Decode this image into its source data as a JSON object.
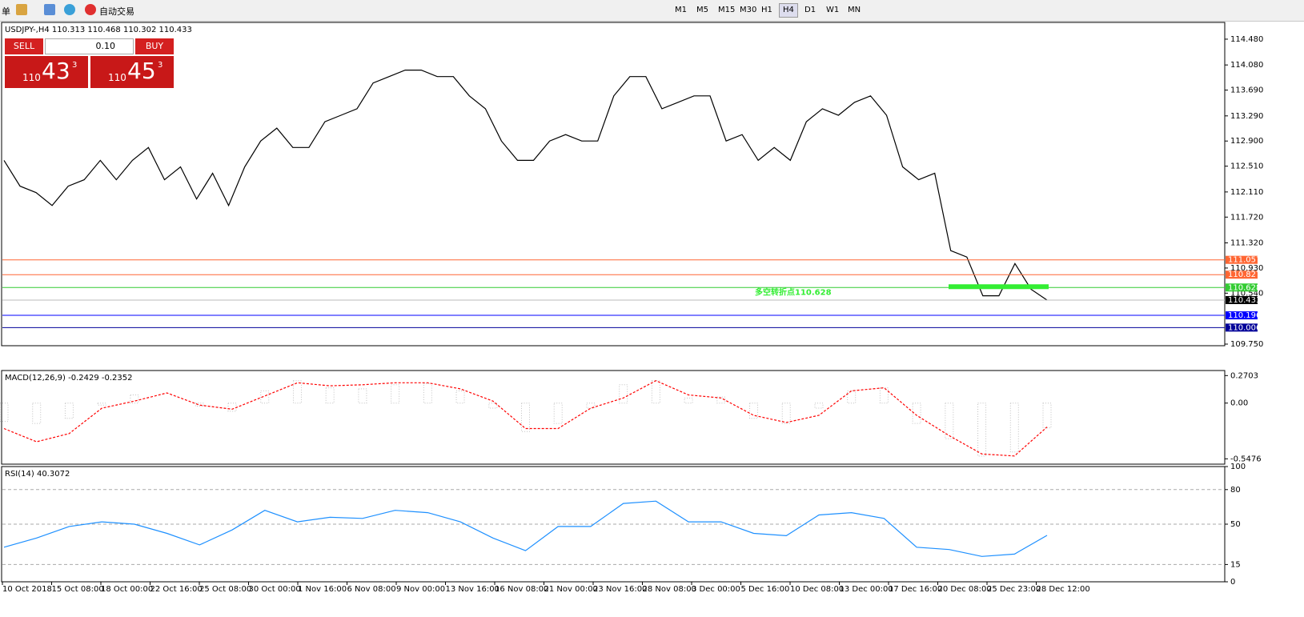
{
  "toolbar": {
    "menu_fragment": "单",
    "auto_trade": "自动交易",
    "timeframes": [
      "M1",
      "M5",
      "M15",
      "M30",
      "H1",
      "H4",
      "D1",
      "W1",
      "MN"
    ],
    "active": "H4"
  },
  "trade_panel": {
    "sell": "SELL",
    "buy": "BUY",
    "lot": "0.10",
    "sell_big": "110",
    "sell_main": "43",
    "sell_pip": "3",
    "buy_big": "110",
    "buy_main": "45",
    "buy_pip": "3"
  },
  "chart_data": [
    {
      "type": "line",
      "title": "USDJPY-,H4 110.313 110.468 110.302 110.433",
      "color": "#000000",
      "values": [
        112.6,
        112.2,
        112.1,
        111.9,
        112.2,
        112.3,
        112.6,
        112.3,
        112.6,
        112.8,
        112.3,
        112.5,
        112.0,
        112.4,
        111.9,
        112.5,
        112.9,
        113.1,
        112.8,
        112.8,
        113.2,
        113.3,
        113.4,
        113.8,
        113.9,
        114.0,
        114.0,
        113.9,
        113.9,
        113.6,
        113.4,
        112.9,
        112.6,
        112.6,
        112.9,
        113.0,
        112.9,
        112.9,
        113.6,
        113.9,
        113.9,
        113.4,
        113.5,
        113.6,
        113.6,
        112.9,
        113.0,
        112.6,
        112.8,
        112.6,
        113.2,
        113.4,
        113.3,
        113.5,
        113.6,
        113.3,
        112.5,
        112.3,
        112.4,
        111.2,
        111.1,
        110.5,
        110.5,
        111.0,
        110.6,
        110.433
      ],
      "ylim": [
        109.725,
        114.74
      ],
      "yticks": [
        {
          "value": 114.48,
          "label": "114.480"
        },
        {
          "value": 114.08,
          "label": "114.080"
        },
        {
          "value": 113.69,
          "label": "113.690"
        },
        {
          "value": 113.29,
          "label": "113.290"
        },
        {
          "value": 112.9,
          "label": "112.900"
        },
        {
          "value": 112.51,
          "label": "112.510"
        },
        {
          "value": 112.11,
          "label": "112.110"
        },
        {
          "value": 111.72,
          "label": "111.720"
        },
        {
          "value": 111.32,
          "label": "111.320"
        },
        {
          "value": 110.93,
          "label": "110.930"
        },
        {
          "value": 110.54,
          "label": "110.540"
        },
        {
          "value": 109.75,
          "label": "109.750"
        }
      ],
      "levels": [
        {
          "value": 111.057,
          "color": "#ff6633"
        },
        {
          "value": 110.827,
          "color": "#ff6633"
        },
        {
          "value": 110.628,
          "color": "#33cc33"
        },
        {
          "value": 110.196,
          "color": "#0000ff"
        },
        {
          "value": 110.006,
          "color": "#000099"
        }
      ],
      "last": 110.433,
      "annotation": {
        "text": "多空转折点110.628",
        "value": 110.628,
        "color": "#33ee33"
      },
      "date_labels": [
        "10 Oct 2018",
        "15 Oct 08:00",
        "18 Oct 00:00",
        "22 Oct 16:00",
        "25 Oct 08:00",
        "30 Oct 00:00",
        "1 Nov 16:00",
        "6 Nov 08:00",
        "9 Nov 00:00",
        "13 Nov 16:00",
        "16 Nov 08:00",
        "21 Nov 00:00",
        "23 Nov 16:00",
        "28 Nov 08:00",
        "3 Dec 00:00",
        "5 Dec 16:00",
        "10 Dec 08:00",
        "13 Dec 00:00",
        "17 Dec 16:00",
        "20 Dec 08:00",
        "25 Dec 23:00",
        "28 Dec 12:00"
      ]
    },
    {
      "type": "macd",
      "title": "MACD(12,26,9) -0.2429 -0.2352",
      "series": [
        {
          "name": "MACD",
          "color": "#c0c0c0",
          "values": [
            -0.18,
            -0.2,
            -0.15,
            -0.02,
            0.08,
            0.0,
            -0.03,
            -0.08,
            0.12,
            0.22,
            0.15,
            0.14,
            0.18,
            0.19,
            0.12,
            -0.05,
            -0.28,
            -0.2,
            -0.05,
            0.18,
            0.22,
            0.05,
            0.06,
            -0.15,
            -0.2,
            -0.05,
            0.12,
            0.15,
            -0.2,
            -0.35,
            -0.52,
            -0.48,
            -0.2429
          ]
        },
        {
          "name": "Signal",
          "color": "#ff0000",
          "values": [
            -0.25,
            -0.38,
            -0.3,
            -0.05,
            0.02,
            0.1,
            -0.02,
            -0.06,
            0.07,
            0.2,
            0.17,
            0.18,
            0.2,
            0.2,
            0.14,
            0.02,
            -0.25,
            -0.25,
            -0.05,
            0.05,
            0.22,
            0.08,
            0.05,
            -0.12,
            -0.19,
            -0.12,
            0.12,
            0.15,
            -0.12,
            -0.32,
            -0.5,
            -0.52,
            -0.2352
          ]
        }
      ],
      "ylim": [
        -0.6,
        0.32
      ],
      "yticks": [
        0.2703,
        {
          "value": 0,
          "label": "0.00"
        },
        -0.5476
      ]
    },
    {
      "type": "line",
      "title": "RSI(14) 40.3072",
      "color": "#1e90ff",
      "values": [
        30,
        38,
        48,
        52,
        50,
        42,
        32,
        45,
        62,
        52,
        56,
        55,
        62,
        60,
        52,
        38,
        27,
        48,
        48,
        68,
        70,
        52,
        52,
        42,
        40,
        58,
        60,
        55,
        30,
        28,
        22,
        24,
        40.3072
      ],
      "ylim": [
        0,
        100
      ],
      "yticks": [
        100,
        80,
        50,
        15,
        0
      ],
      "grid": [
        80,
        50,
        15
      ]
    }
  ]
}
